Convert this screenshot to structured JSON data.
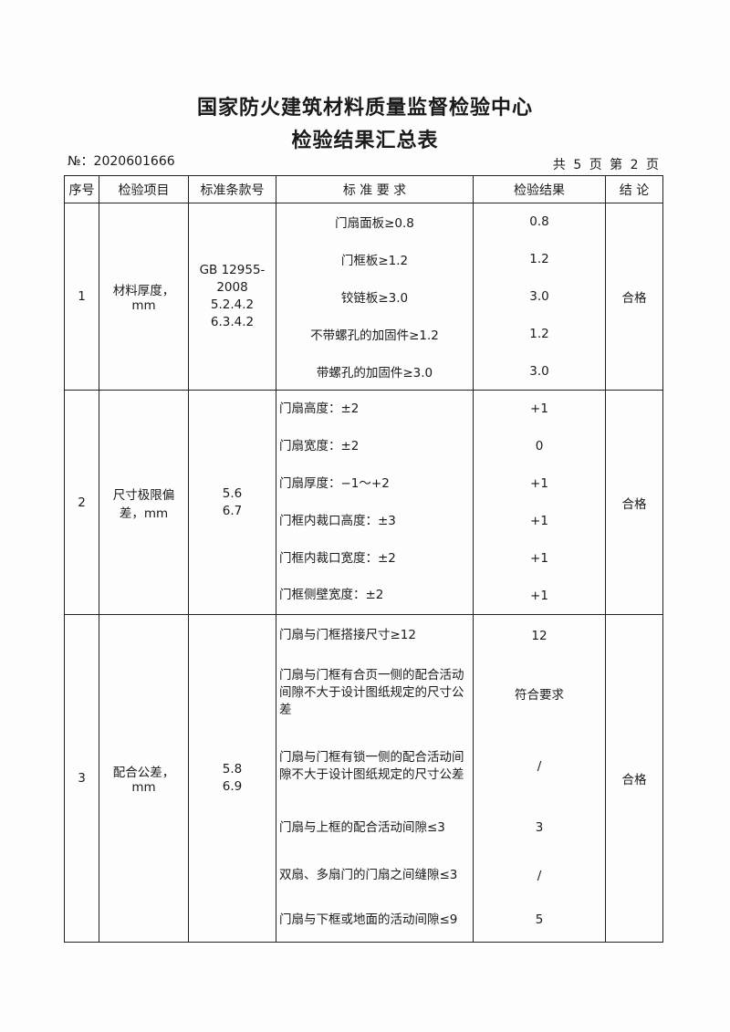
{
  "title": "国家防火建筑材料质量监督检验中心",
  "subtitle": "检验结果汇总表",
  "report_no": "№：2020601666",
  "page_info": "共 5 页 第 2 页",
  "headers": [
    "序号",
    "检验项目",
    "标准条款号",
    "标 准 要 求",
    "检验结果",
    "结 论"
  ],
  "groups": [
    {
      "no": "1",
      "item": "材料厚度，mm",
      "clause": "GB 12955-2008\n5.2.4.2\n6.3.4.2",
      "conclusion": "合格",
      "rows": [
        {
          "req": "门扇面板≥0.8",
          "result": "0.8"
        },
        {
          "req": "门框板≥1.2",
          "result": "1.2"
        },
        {
          "req": "铰链板≥3.0",
          "result": "3.0"
        },
        {
          "req": "不带螺孔的加固件≥1.2",
          "result": "1.2"
        },
        {
          "req": "带螺孔的加固件≥3.0",
          "result": "3.0"
        }
      ]
    },
    {
      "no": "2",
      "item": "尺寸极限偏差，mm",
      "clause": "5.6\n6.7",
      "conclusion": "合格",
      "rows": [
        {
          "req": "门扇高度：±2",
          "result": "+1"
        },
        {
          "req": "门扇宽度：±2",
          "result": "0"
        },
        {
          "req": "门扇厚度：−1～+2",
          "result": "+1"
        },
        {
          "req": "门框内裁口高度：±3",
          "result": "+1"
        },
        {
          "req": "门框内裁口宽度：±2",
          "result": "+1"
        },
        {
          "req": "门框侧壁宽度：±2",
          "result": "+1"
        }
      ]
    },
    {
      "no": "3",
      "item": "配合公差，mm",
      "clause": "5.8\n6.9",
      "conclusion": "合格",
      "rows": [
        {
          "req": "门扇与门框搭接尺寸≥12",
          "result": "12"
        },
        {
          "req": "门扇与门框有合页一侧的配合活动间隙不大于设计图纸规定的尺寸公差",
          "result": "符合要求"
        },
        {
          "req": "门扇与门框有锁一侧的配合活动间隙不大于设计图纸规定的尺寸公差",
          "result": "/"
        },
        {
          "req": "门扇与上框的配合活动间隙≤3",
          "result": "3"
        },
        {
          "req": "双扇、多扇门的门扇之间缝隙≤3",
          "result": "/"
        },
        {
          "req": "门扇与下框或地面的活动间隙≤9",
          "result": "5"
        }
      ]
    }
  ]
}
